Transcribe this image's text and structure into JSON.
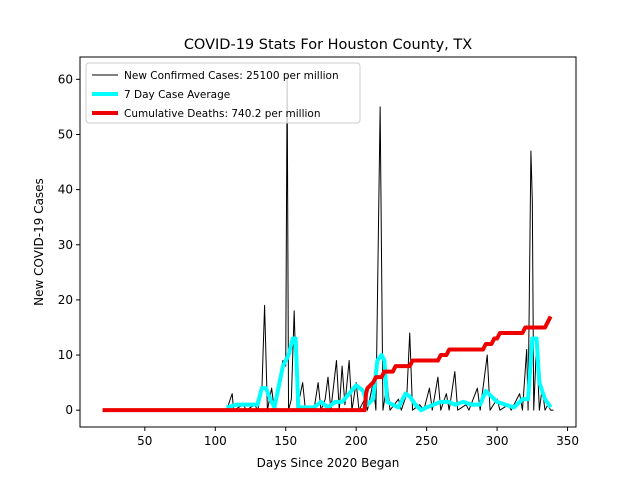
{
  "chart_data": {
    "type": "line",
    "title": "COVID-19 Stats For Houston County, TX",
    "x_label": "Days Since 2020 Began",
    "y_label": "New COVID-19 Cases",
    "xlim": [
      4,
      356
    ],
    "ylim": [
      -3.05,
      64.05
    ],
    "xticks": [
      50,
      100,
      150,
      200,
      250,
      300,
      350
    ],
    "yticks": [
      0,
      10,
      20,
      30,
      40,
      50,
      60
    ],
    "legend": "upper left",
    "series": [
      {
        "name": "New Confirmed Cases: 25100 per million",
        "color": "#000000",
        "linewidth": 1,
        "x": [
          108,
          112,
          113,
          120,
          122,
          128,
          130,
          133,
          135,
          137,
          140,
          142,
          148,
          150,
          151,
          152,
          154,
          156,
          158,
          162,
          164,
          170,
          173,
          175,
          178,
          180,
          182,
          186,
          188,
          190,
          192,
          195,
          197,
          200,
          202,
          206,
          208,
          212,
          214,
          217,
          219,
          222,
          224,
          230,
          232,
          236,
          238,
          240,
          245,
          248,
          252,
          254,
          258,
          260,
          264,
          266,
          270,
          272,
          278,
          280,
          286,
          288,
          293,
          295,
          300,
          302,
          308,
          310,
          316,
          318,
          321,
          322,
          324,
          325,
          326,
          328,
          330,
          332,
          334,
          336,
          338,
          340
        ],
        "values": [
          0,
          3,
          0,
          1,
          0,
          1,
          0,
          3,
          19,
          0,
          4,
          0,
          9,
          8,
          61,
          0,
          2,
          18,
          0,
          5,
          0,
          0,
          5,
          0,
          2,
          6,
          0,
          9,
          0,
          8,
          1,
          9,
          0,
          5,
          0,
          2,
          0,
          5,
          0,
          55,
          0,
          5,
          0,
          2,
          0,
          3,
          14,
          0,
          1,
          0,
          4,
          0,
          6,
          0,
          3,
          0,
          7,
          0,
          1,
          0,
          4,
          0,
          10,
          0,
          2,
          0,
          1,
          0,
          3,
          0,
          11,
          0,
          47,
          38,
          0,
          12,
          0,
          4,
          0,
          1,
          0,
          0
        ]
      },
      {
        "name": "7 Day Case Average",
        "color": "#00ffff",
        "linewidth": 4,
        "x": [
          108,
          115,
          125,
          130,
          133,
          136,
          139,
          142,
          148,
          152,
          155,
          157,
          159,
          170,
          175,
          180,
          185,
          190,
          195,
          200,
          205,
          208,
          212,
          215,
          218,
          220,
          222,
          226,
          230,
          235,
          238,
          242,
          246,
          250,
          255,
          260,
          266,
          270,
          276,
          282,
          288,
          292,
          296,
          300,
          306,
          312,
          318,
          322,
          325,
          328,
          330,
          334,
          338
        ],
        "values": [
          0.5,
          1,
          1,
          1,
          4,
          4,
          2,
          0.5,
          8,
          10,
          13,
          13,
          0.5,
          0.5,
          1.5,
          0.5,
          1.5,
          1.5,
          3,
          4.5,
          3.5,
          1,
          2,
          9,
          10,
          9,
          1.5,
          1,
          0.5,
          3,
          2.5,
          1,
          0,
          0.5,
          1,
          1.5,
          1.5,
          1,
          1.5,
          1,
          1,
          3.5,
          2.5,
          1.5,
          1,
          0.5,
          2,
          2,
          13,
          13,
          5,
          2,
          0.5
        ]
      },
      {
        "name": "Cumulative Deaths: 740.2 per million",
        "color": "#ee0000",
        "linewidth": 4,
        "x": [
          20,
          206,
          207,
          208,
          212,
          214,
          218,
          220,
          226,
          228,
          238,
          240,
          258,
          260,
          264,
          266,
          290,
          292,
          296,
          298,
          300,
          302,
          318,
          320,
          334,
          336,
          338
        ],
        "values": [
          0,
          0,
          3,
          4,
          5,
          6,
          6,
          7,
          7,
          8,
          8,
          9,
          9,
          10,
          10,
          11,
          11,
          12,
          12,
          13,
          13,
          14,
          14,
          15,
          15,
          16,
          17
        ]
      }
    ]
  }
}
